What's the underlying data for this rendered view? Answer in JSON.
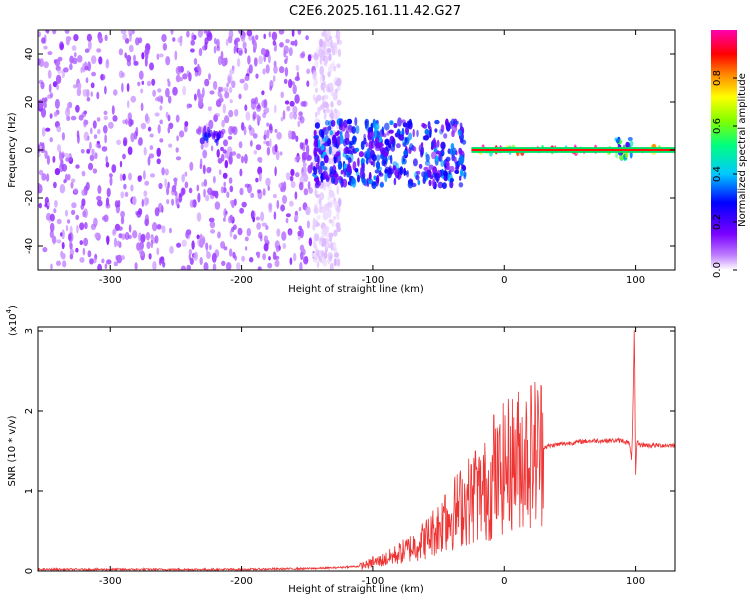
{
  "title": "C2E6.2025.161.11.42.G27",
  "chart_data": [
    {
      "type": "heatmap",
      "xlabel": "Height of straight line (km)",
      "ylabel": "Frequency (Hz)",
      "xlim": [
        -355,
        130
      ],
      "ylim": [
        -50,
        50
      ],
      "x_ticks": [
        -300,
        -200,
        -100,
        0,
        100
      ],
      "y_ticks": [
        -40,
        -20,
        0,
        20,
        40
      ],
      "grid": false,
      "colorbar": {
        "label": "Normalized spectral amplitude",
        "range": [
          0.0,
          1.0
        ],
        "ticks": [
          "0.0",
          "0.2",
          "0.4",
          "0.6",
          "0.8"
        ]
      },
      "regions": [
        {
          "x_range": [
            -355,
            -145
          ],
          "f_range": [
            -50,
            50
          ],
          "amplitude": 0.1
        },
        {
          "x_range": [
            -145,
            -125
          ],
          "f_range": [
            -50,
            50
          ],
          "amplitude": 0.03
        },
        {
          "x_range": [
            -230,
            -215
          ],
          "f_range": [
            3,
            9
          ],
          "amplitude": 0.25
        },
        {
          "x_range": [
            -145,
            -30
          ],
          "f_range": [
            -15,
            12
          ],
          "amplitude": 0.3
        },
        {
          "x_range": [
            -25,
            130
          ],
          "f_range": [
            -1,
            1
          ],
          "amplitude": 0.9
        },
        {
          "x_range": [
            85,
            97
          ],
          "f_range": [
            -4,
            5
          ],
          "amplitude": 0.5
        }
      ]
    },
    {
      "type": "line",
      "xlabel": "Height of straight line (km)",
      "ylabel": "SNR (10 * v/v)",
      "y_multiplier_label": "(x10",
      "y_multiplier_exponent": "4",
      "xlim": [
        -355,
        130
      ],
      "ylim": [
        0,
        3.05
      ],
      "x_ticks": [
        -300,
        -200,
        -100,
        0,
        100
      ],
      "y_ticks": [
        0,
        1,
        2,
        3
      ],
      "grid": false,
      "color": "#ee3333",
      "series": [
        {
          "x": [
            -355,
            -300,
            -250,
            -200,
            -150,
            -130,
            -110,
            -100,
            -90,
            -80,
            -70,
            -60,
            -50,
            -40,
            -30,
            -20,
            -10,
            -5,
            0,
            10,
            20,
            30,
            40,
            50,
            60,
            70,
            80,
            90,
            95,
            97,
            98,
            99,
            100,
            101,
            103,
            110,
            120,
            130
          ],
          "y": [
            0.02,
            0.02,
            0.02,
            0.02,
            0.03,
            0.04,
            0.06,
            0.1,
            0.15,
            0.22,
            0.3,
            0.4,
            0.55,
            0.7,
            0.85,
            0.95,
            1.05,
            1.15,
            1.3,
            1.4,
            1.48,
            1.55,
            1.58,
            1.6,
            1.62,
            1.63,
            1.63,
            1.63,
            1.6,
            1.4,
            2.0,
            3.05,
            1.2,
            1.62,
            1.58,
            1.57,
            1.57,
            1.57
          ],
          "peaks": [
            {
              "x": -8,
              "y": 1.95
            },
            {
              "x": -22,
              "y": 1.5
            },
            {
              "x": -45,
              "y": 0.95
            },
            {
              "x": -100,
              "y": 0.18
            }
          ]
        }
      ]
    }
  ]
}
